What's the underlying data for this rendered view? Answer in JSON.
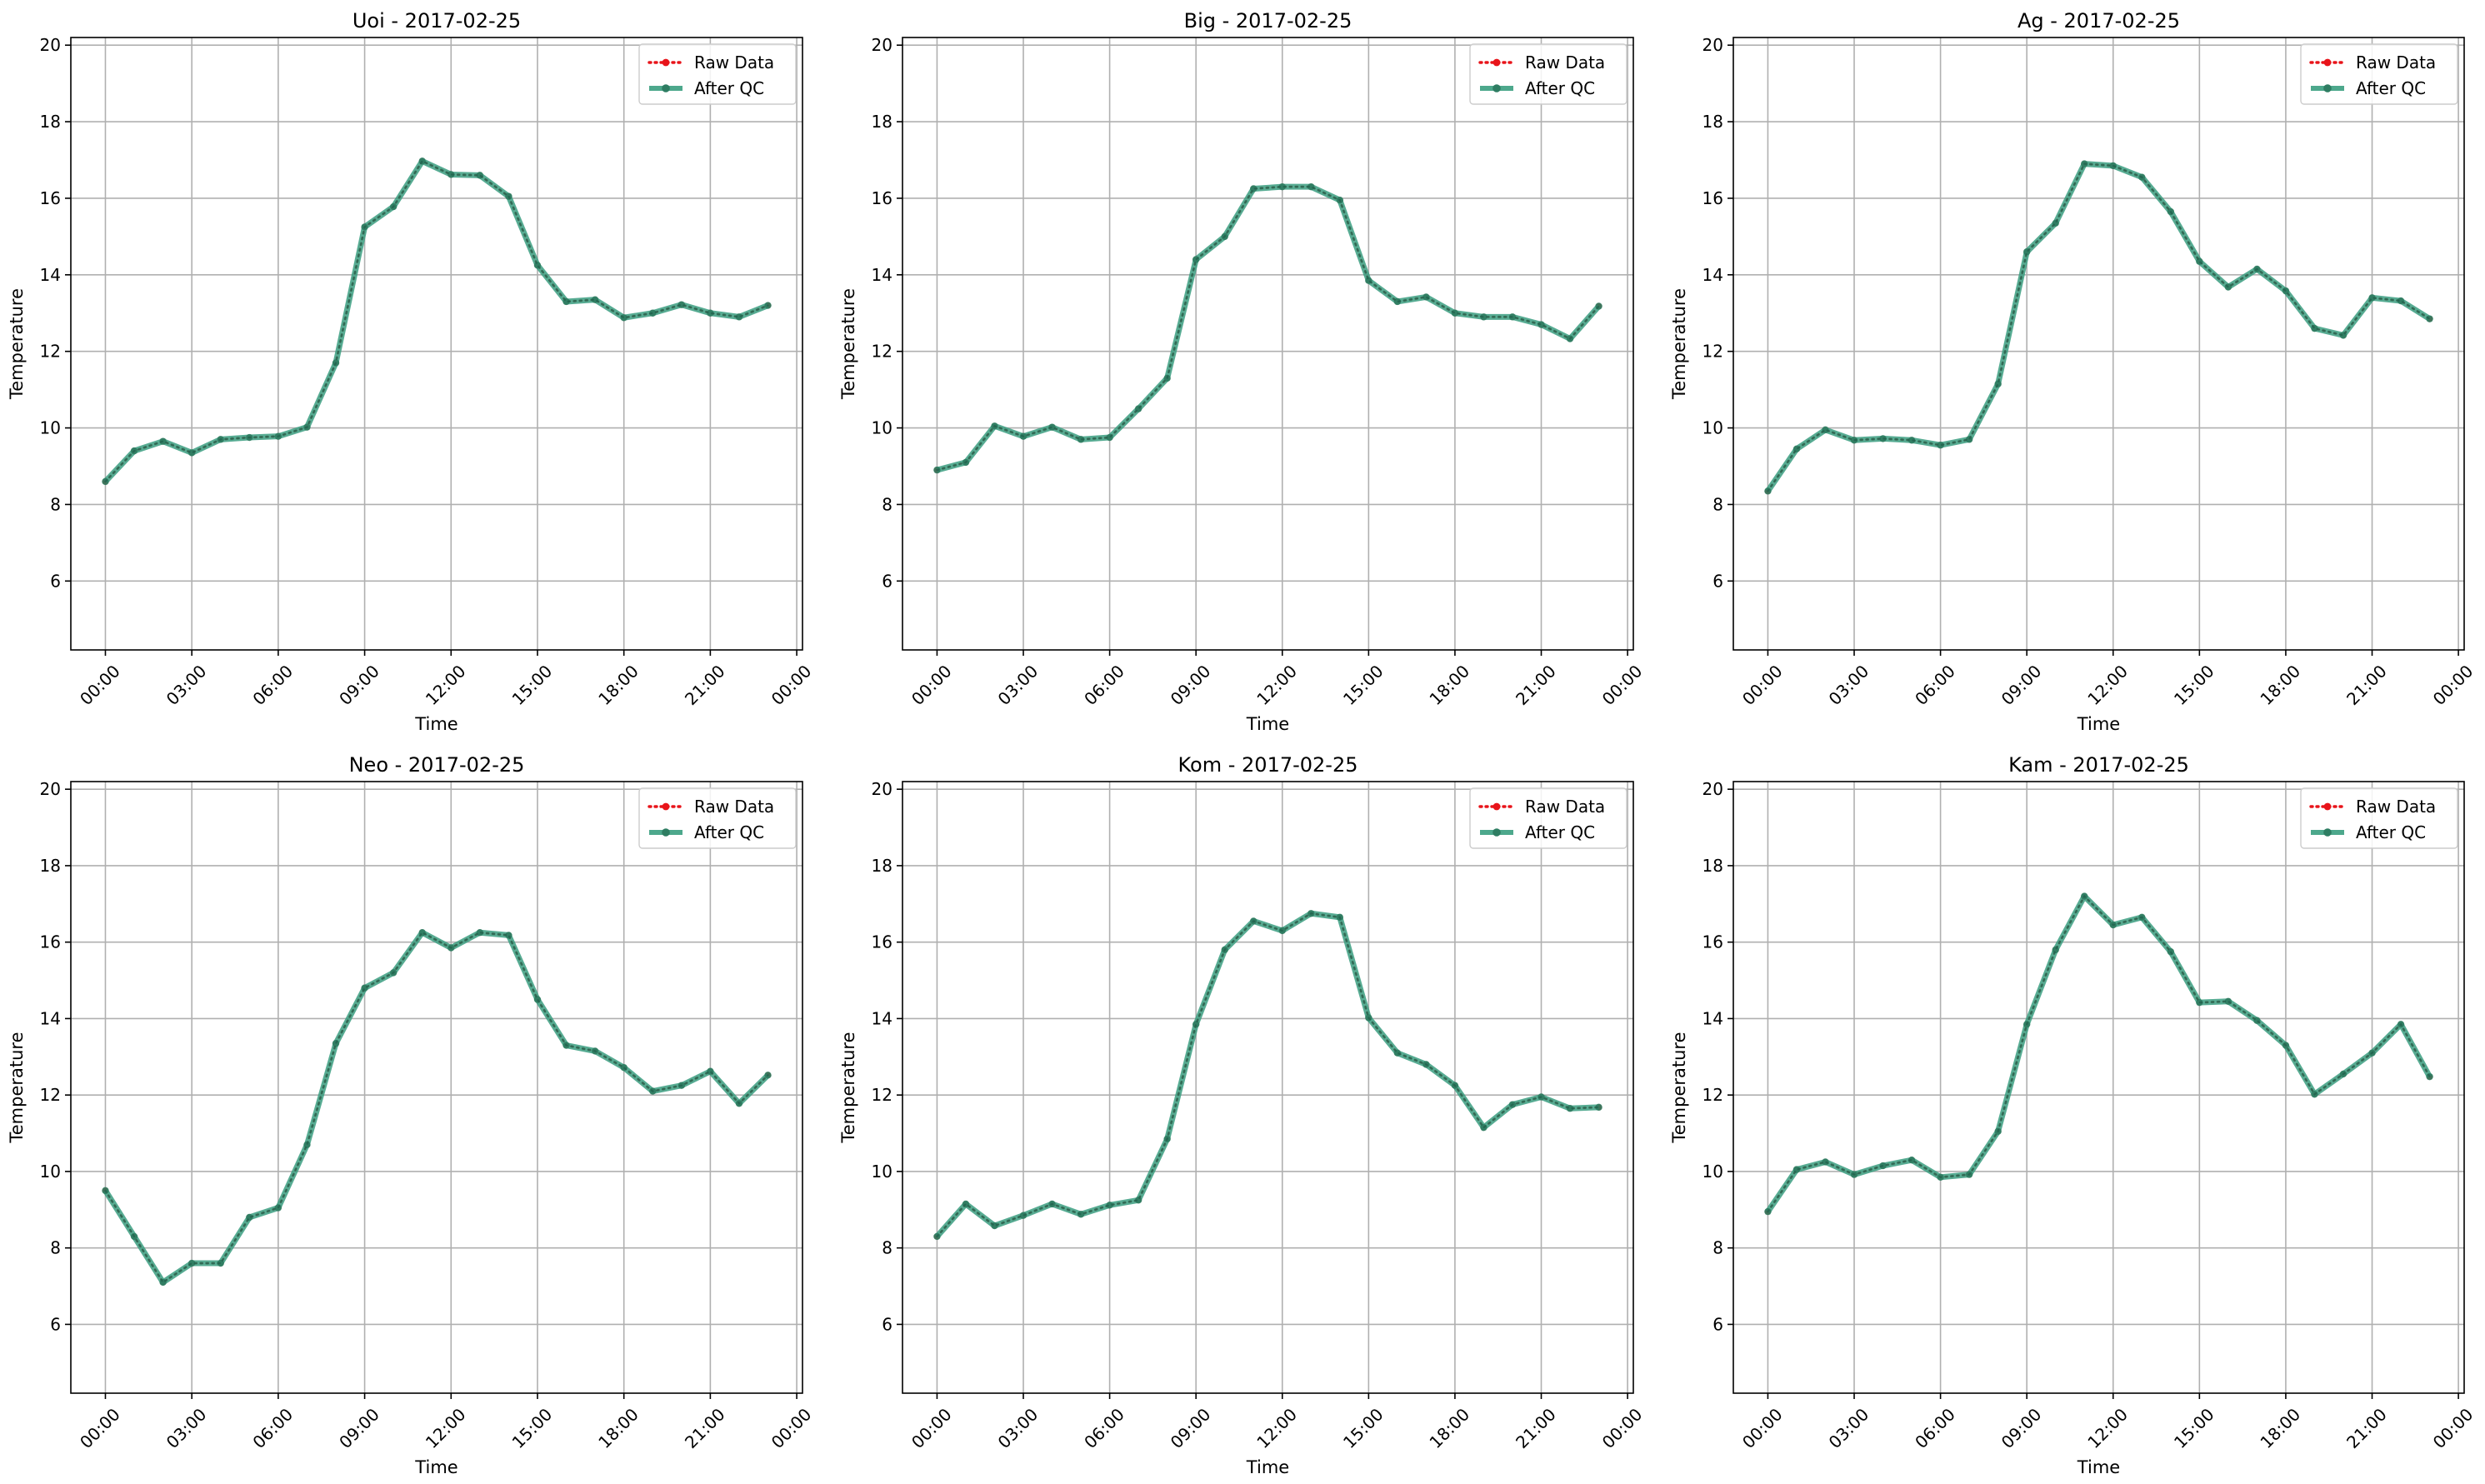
{
  "chart_data": [
    {
      "type": "line",
      "title": "Uoi - 2017-02-25",
      "xlabel": "Time",
      "ylabel": "Temperature",
      "x_ticks": [
        "00:00",
        "03:00",
        "06:00",
        "09:00",
        "12:00",
        "15:00",
        "18:00",
        "21:00",
        "00:00"
      ],
      "y_ticks": [
        6,
        8,
        10,
        12,
        14,
        16,
        18,
        20
      ],
      "xlim": [
        -1.2,
        24.2
      ],
      "ylim": [
        4.2,
        20.2
      ],
      "grid": true,
      "legend_position": "top-right",
      "hours": [
        0,
        1,
        2,
        3,
        4,
        5,
        6,
        7,
        8,
        9,
        10,
        11,
        12,
        13,
        14,
        15,
        16,
        17,
        18,
        19,
        20,
        21,
        22,
        23
      ],
      "series": [
        {
          "name": "Raw Data",
          "color": "#e8141a",
          "style": "dotted",
          "marker": "circle",
          "values": [
            8.6,
            9.4,
            9.65,
            9.35,
            9.7,
            9.75,
            9.78,
            10.02,
            11.7,
            15.25,
            15.78,
            16.97,
            16.62,
            16.6,
            16.05,
            14.25,
            13.3,
            13.35,
            12.88,
            13.0,
            13.22,
            13.0,
            12.9,
            13.2
          ]
        },
        {
          "name": "After QC",
          "color": "#3a9e80",
          "style": "solid",
          "marker": "circle",
          "values": [
            8.6,
            9.4,
            9.65,
            9.35,
            9.7,
            9.75,
            9.78,
            10.02,
            11.7,
            15.25,
            15.78,
            16.97,
            16.62,
            16.6,
            16.05,
            14.25,
            13.3,
            13.35,
            12.88,
            13.0,
            13.22,
            13.0,
            12.9,
            13.2
          ]
        }
      ]
    },
    {
      "type": "line",
      "title": "Big - 2017-02-25",
      "xlabel": "Time",
      "ylabel": "Temperature",
      "x_ticks": [
        "00:00",
        "03:00",
        "06:00",
        "09:00",
        "12:00",
        "15:00",
        "18:00",
        "21:00",
        "00:00"
      ],
      "y_ticks": [
        6,
        8,
        10,
        12,
        14,
        16,
        18,
        20
      ],
      "xlim": [
        -1.2,
        24.2
      ],
      "ylim": [
        4.2,
        20.2
      ],
      "grid": true,
      "legend_position": "top-right",
      "hours": [
        0,
        1,
        2,
        3,
        4,
        5,
        6,
        7,
        8,
        9,
        10,
        11,
        12,
        13,
        14,
        15,
        16,
        17,
        18,
        19,
        20,
        21,
        22,
        23
      ],
      "series": [
        {
          "name": "Raw Data",
          "color": "#e8141a",
          "style": "dotted",
          "marker": "circle",
          "values": [
            8.9,
            9.1,
            10.05,
            9.78,
            10.02,
            9.7,
            9.75,
            10.5,
            11.3,
            14.4,
            15.0,
            16.25,
            16.3,
            16.3,
            15.95,
            13.85,
            13.3,
            13.42,
            13.0,
            12.9,
            12.9,
            12.7,
            12.33,
            13.18
          ]
        },
        {
          "name": "After QC",
          "color": "#3a9e80",
          "style": "solid",
          "marker": "circle",
          "values": [
            8.9,
            9.1,
            10.05,
            9.78,
            10.02,
            9.7,
            9.75,
            10.5,
            11.3,
            14.4,
            15.0,
            16.25,
            16.3,
            16.3,
            15.95,
            13.85,
            13.3,
            13.42,
            13.0,
            12.9,
            12.9,
            12.7,
            12.33,
            13.18
          ]
        }
      ]
    },
    {
      "type": "line",
      "title": "Ag - 2017-02-25",
      "xlabel": "Time",
      "ylabel": "Temperature",
      "x_ticks": [
        "00:00",
        "03:00",
        "06:00",
        "09:00",
        "12:00",
        "15:00",
        "18:00",
        "21:00",
        "00:00"
      ],
      "y_ticks": [
        6,
        8,
        10,
        12,
        14,
        16,
        18,
        20
      ],
      "xlim": [
        -1.2,
        24.2
      ],
      "ylim": [
        4.2,
        20.2
      ],
      "grid": true,
      "legend_position": "top-right",
      "hours": [
        0,
        1,
        2,
        3,
        4,
        5,
        6,
        7,
        8,
        9,
        10,
        11,
        12,
        13,
        14,
        15,
        16,
        17,
        18,
        19,
        20,
        21,
        22,
        23
      ],
      "series": [
        {
          "name": "Raw Data",
          "color": "#e8141a",
          "style": "dotted",
          "marker": "circle",
          "values": [
            8.35,
            9.45,
            9.95,
            9.68,
            9.72,
            9.68,
            9.55,
            9.7,
            11.15,
            14.6,
            15.35,
            16.9,
            16.85,
            16.55,
            15.65,
            14.35,
            13.68,
            14.15,
            13.58,
            12.6,
            12.42,
            13.4,
            13.32,
            12.85
          ]
        },
        {
          "name": "After QC",
          "color": "#3a9e80",
          "style": "solid",
          "marker": "circle",
          "values": [
            8.35,
            9.45,
            9.95,
            9.68,
            9.72,
            9.68,
            9.55,
            9.7,
            11.15,
            14.6,
            15.35,
            16.9,
            16.85,
            16.55,
            15.65,
            14.35,
            13.68,
            14.15,
            13.58,
            12.6,
            12.42,
            13.4,
            13.32,
            12.85
          ]
        }
      ]
    },
    {
      "type": "line",
      "title": "Neo - 2017-02-25",
      "xlabel": "Time",
      "ylabel": "Temperature",
      "x_ticks": [
        "00:00",
        "03:00",
        "06:00",
        "09:00",
        "12:00",
        "15:00",
        "18:00",
        "21:00",
        "00:00"
      ],
      "y_ticks": [
        6,
        8,
        10,
        12,
        14,
        16,
        18,
        20
      ],
      "xlim": [
        -1.2,
        24.2
      ],
      "ylim": [
        4.2,
        20.2
      ],
      "grid": true,
      "legend_position": "top-right",
      "hours": [
        0,
        1,
        2,
        3,
        4,
        5,
        6,
        7,
        8,
        9,
        10,
        11,
        12,
        13,
        14,
        15,
        16,
        17,
        18,
        19,
        20,
        21,
        22,
        23
      ],
      "series": [
        {
          "name": "Raw Data",
          "color": "#e8141a",
          "style": "dotted",
          "marker": "circle",
          "values": [
            9.5,
            8.3,
            7.1,
            7.6,
            7.6,
            8.8,
            9.05,
            10.7,
            13.35,
            14.8,
            15.2,
            16.25,
            15.85,
            16.25,
            16.18,
            14.5,
            13.3,
            13.15,
            12.72,
            12.1,
            12.25,
            12.62,
            11.78,
            12.52
          ]
        },
        {
          "name": "After QC",
          "color": "#3a9e80",
          "style": "solid",
          "marker": "circle",
          "values": [
            9.5,
            8.3,
            7.1,
            7.6,
            7.6,
            8.8,
            9.05,
            10.7,
            13.35,
            14.8,
            15.2,
            16.25,
            15.85,
            16.25,
            16.18,
            14.5,
            13.3,
            13.15,
            12.72,
            12.1,
            12.25,
            12.62,
            11.78,
            12.52
          ]
        }
      ]
    },
    {
      "type": "line",
      "title": "Kom - 2017-02-25",
      "xlabel": "Time",
      "ylabel": "Temperature",
      "x_ticks": [
        "00:00",
        "03:00",
        "06:00",
        "09:00",
        "12:00",
        "15:00",
        "18:00",
        "21:00",
        "00:00"
      ],
      "y_ticks": [
        6,
        8,
        10,
        12,
        14,
        16,
        18,
        20
      ],
      "xlim": [
        -1.2,
        24.2
      ],
      "ylim": [
        4.2,
        20.2
      ],
      "grid": true,
      "legend_position": "top-right",
      "hours": [
        0,
        1,
        2,
        3,
        4,
        5,
        6,
        7,
        8,
        9,
        10,
        11,
        12,
        13,
        14,
        15,
        16,
        17,
        18,
        19,
        20,
        21,
        22,
        23
      ],
      "series": [
        {
          "name": "Raw Data",
          "color": "#e8141a",
          "style": "dotted",
          "marker": "circle",
          "values": [
            8.3,
            9.15,
            8.58,
            8.85,
            9.15,
            8.88,
            9.12,
            9.25,
            10.85,
            13.85,
            15.8,
            16.55,
            16.3,
            16.75,
            16.65,
            14.02,
            13.1,
            12.8,
            12.25,
            11.15,
            11.75,
            11.95,
            11.65,
            11.68
          ]
        },
        {
          "name": "After QC",
          "color": "#3a9e80",
          "style": "solid",
          "marker": "circle",
          "values": [
            8.3,
            9.15,
            8.58,
            8.85,
            9.15,
            8.88,
            9.12,
            9.25,
            10.85,
            13.85,
            15.8,
            16.55,
            16.3,
            16.75,
            16.65,
            14.02,
            13.1,
            12.8,
            12.25,
            11.15,
            11.75,
            11.95,
            11.65,
            11.68
          ]
        }
      ]
    },
    {
      "type": "line",
      "title": "Kam - 2017-02-25",
      "xlabel": "Time",
      "ylabel": "Temperature",
      "x_ticks": [
        "00:00",
        "03:00",
        "06:00",
        "09:00",
        "12:00",
        "15:00",
        "18:00",
        "21:00",
        "00:00"
      ],
      "y_ticks": [
        6,
        8,
        10,
        12,
        14,
        16,
        18,
        20
      ],
      "xlim": [
        -1.2,
        24.2
      ],
      "ylim": [
        4.2,
        20.2
      ],
      "grid": true,
      "legend_position": "top-right",
      "hours": [
        0,
        1,
        2,
        3,
        4,
        5,
        6,
        7,
        8,
        9,
        10,
        11,
        12,
        13,
        14,
        15,
        16,
        17,
        18,
        19,
        20,
        21,
        22,
        23
      ],
      "series": [
        {
          "name": "Raw Data",
          "color": "#e8141a",
          "style": "dotted",
          "marker": "circle",
          "values": [
            8.95,
            10.05,
            10.25,
            9.92,
            10.15,
            10.3,
            9.85,
            9.92,
            11.05,
            13.85,
            15.8,
            17.2,
            16.45,
            16.65,
            15.75,
            14.42,
            14.45,
            13.95,
            13.3,
            12.02,
            12.55,
            13.1,
            13.85,
            12.48
          ]
        },
        {
          "name": "After QC",
          "color": "#3a9e80",
          "style": "solid",
          "marker": "circle",
          "values": [
            8.95,
            10.05,
            10.25,
            9.92,
            10.15,
            10.3,
            9.85,
            9.92,
            11.05,
            13.85,
            15.8,
            17.2,
            16.45,
            16.65,
            15.75,
            14.42,
            14.45,
            13.95,
            13.3,
            12.02,
            12.55,
            13.1,
            13.85,
            12.48
          ]
        }
      ]
    }
  ]
}
